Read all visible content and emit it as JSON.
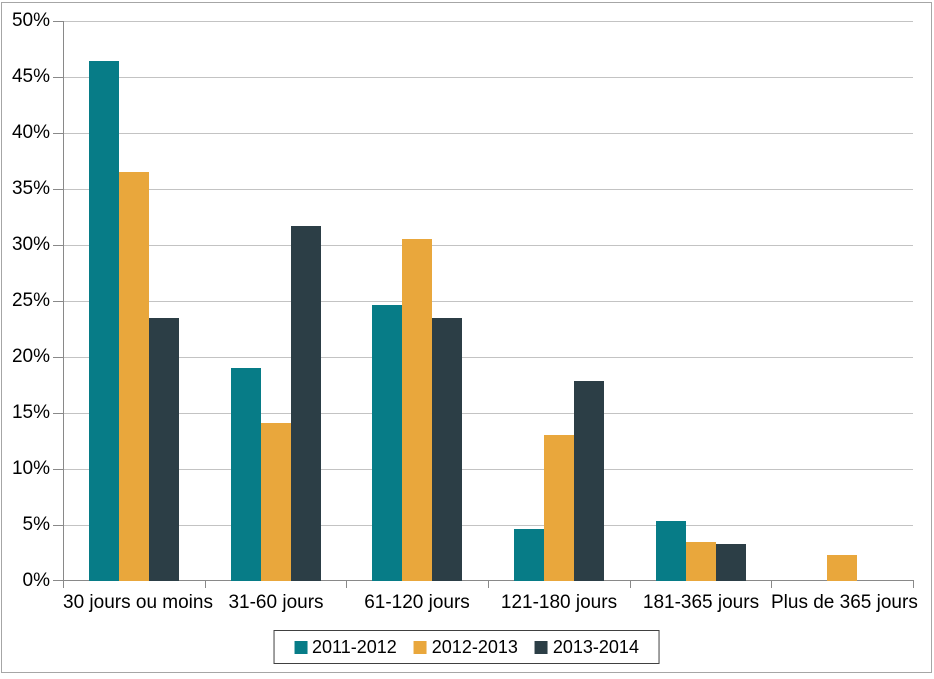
{
  "chart_data": {
    "type": "bar",
    "title": "",
    "xlabel": "",
    "ylabel": "",
    "categories": [
      "30 jours ou moins",
      "31-60 jours",
      "61-120 jours",
      "121-180 jours",
      "181-365 jours",
      "Plus de 365 jours"
    ],
    "series": [
      {
        "name": "2011-2012",
        "color": "#077C87",
        "values": [
          46.4,
          19.0,
          24.6,
          4.6,
          5.4,
          0
        ]
      },
      {
        "name": "2012-2013",
        "color": "#E9A73C",
        "values": [
          36.5,
          14.1,
          30.5,
          13.0,
          3.5,
          2.3
        ]
      },
      {
        "name": "2013-2014",
        "color": "#2C3E46",
        "values": [
          23.5,
          31.7,
          23.5,
          17.9,
          3.3,
          0
        ]
      }
    ],
    "ylim": [
      0,
      50
    ],
    "ytick_step": 5,
    "y_tick_labels": [
      "0%",
      "5%",
      "10%",
      "15%",
      "20%",
      "25%",
      "30%",
      "35%",
      "40%",
      "45%",
      "50%"
    ],
    "grid": true,
    "legend_position": "bottom",
    "colors": {
      "grid": "#C3C3C3",
      "axis": "#898989",
      "frame_border": "#A6A6A6",
      "legend_border": "#404040",
      "background": "#FFFFFF",
      "text": "#000000"
    }
  }
}
